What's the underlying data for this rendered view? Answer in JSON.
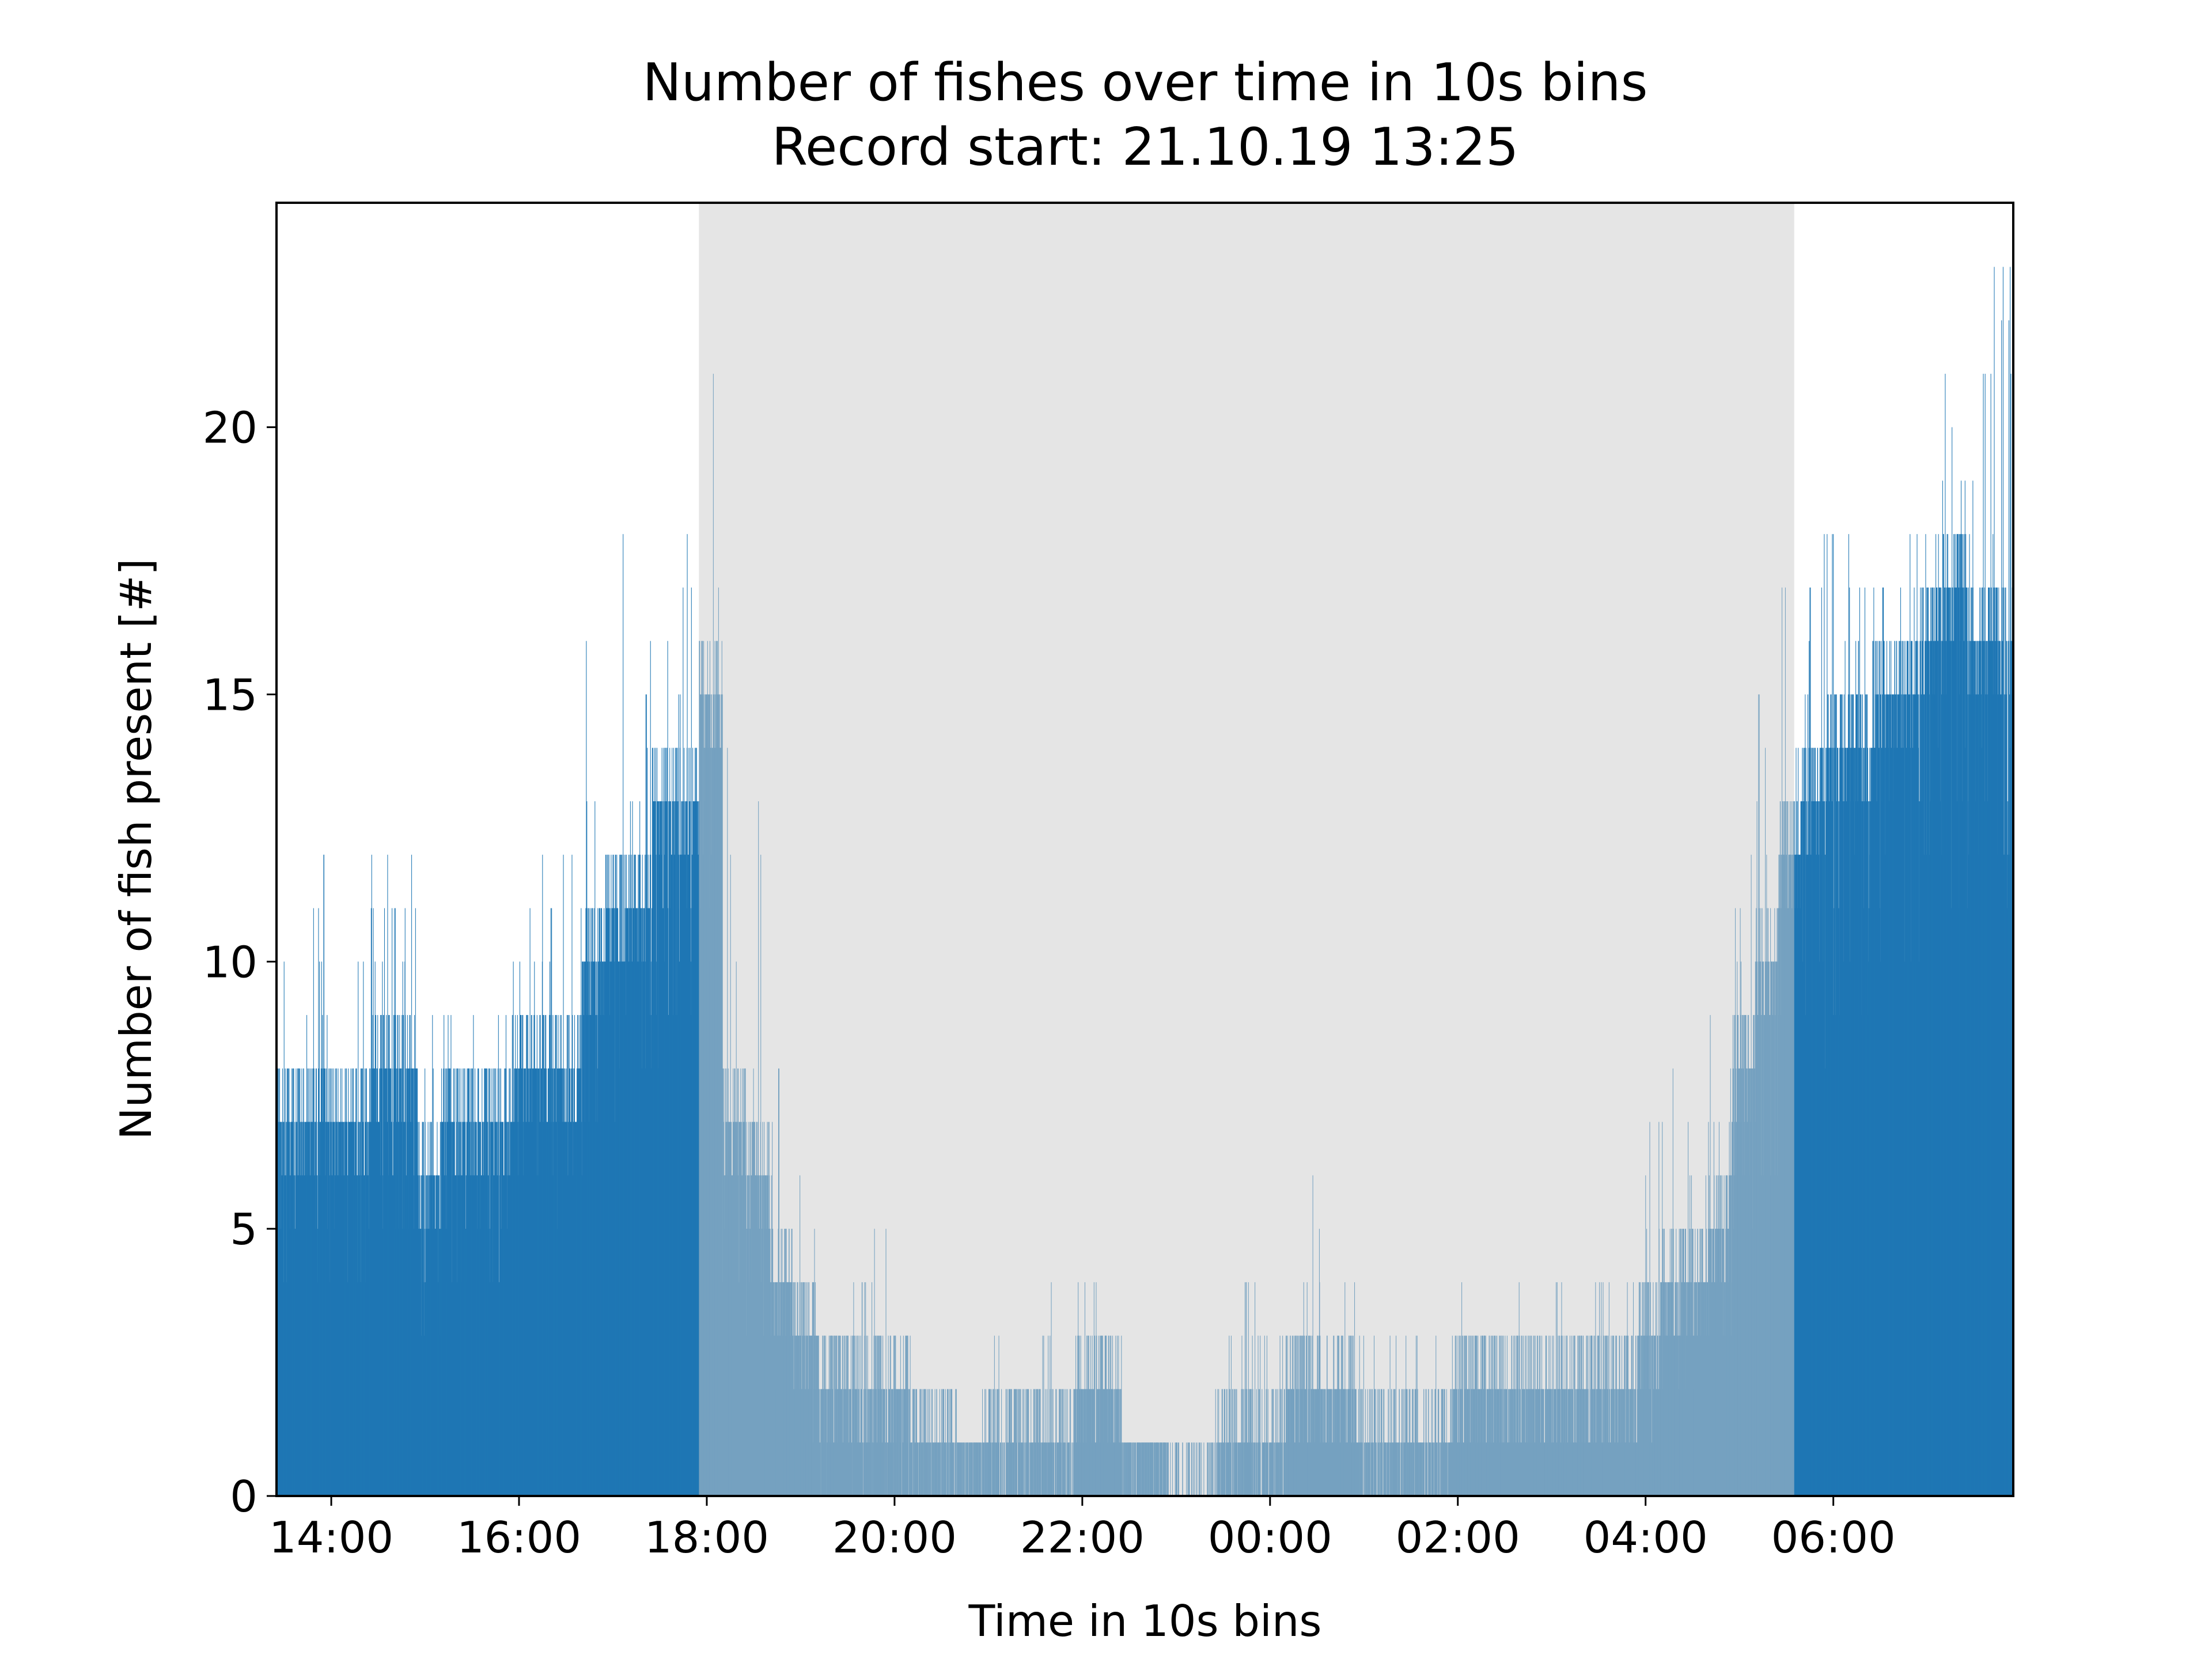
{
  "chart_data": {
    "type": "bar",
    "title": "Number of fishes over time in 10s bins",
    "subtitle": "Record start: 21.10.19 13:25",
    "xlabel": "Time in 10s bins",
    "ylabel": "Number of fish present [#]",
    "x_unit": "time of day (HH:MM), 10 s bins",
    "xlim": [
      "21.10.19 13:25",
      "22.10.19 07:55"
    ],
    "ylim": [
      0,
      24.2
    ],
    "xticks": [
      "14:00",
      "16:00",
      "18:00",
      "20:00",
      "22:00",
      "00:00",
      "02:00",
      "04:00",
      "06:00"
    ],
    "yticks": [
      0,
      5,
      10,
      15,
      20
    ],
    "grid": false,
    "bar_color": "#1f77b4",
    "night_shade": {
      "start": "17:55",
      "end": "05:35",
      "color": "#cccccc",
      "opacity": 0.5
    },
    "bins_per_segment": 90,
    "series": [
      {
        "segment_interval_minutes": 15,
        "x": [
          "13:25",
          "13:40",
          "13:55",
          "14:10",
          "14:25",
          "14:40",
          "14:55",
          "15:10",
          "15:25",
          "15:40",
          "15:55",
          "16:10",
          "16:25",
          "16:40",
          "16:55",
          "17:10",
          "17:25",
          "17:40",
          "17:55",
          "18:10",
          "18:25",
          "18:40",
          "18:55",
          "19:10",
          "19:25",
          "19:40",
          "19:55",
          "20:10",
          "20:25",
          "20:40",
          "20:55",
          "21:10",
          "21:25",
          "21:40",
          "21:55",
          "22:10",
          "22:25",
          "22:40",
          "22:55",
          "23:10",
          "23:25",
          "23:40",
          "23:55",
          "00:10",
          "00:25",
          "00:40",
          "00:55",
          "01:10",
          "01:25",
          "01:40",
          "01:55",
          "02:10",
          "02:25",
          "02:40",
          "02:55",
          "03:10",
          "03:25",
          "03:40",
          "03:55",
          "04:10",
          "04:25",
          "04:40",
          "04:55",
          "05:10",
          "05:25",
          "05:40",
          "05:55",
          "06:10",
          "06:25",
          "06:40",
          "06:55",
          "07:10",
          "07:25",
          "07:40"
        ],
        "max": [
          10,
          11,
          12,
          10,
          12,
          12,
          9,
          9,
          9,
          9,
          11,
          12,
          12,
          16,
          18,
          16,
          16,
          18,
          21,
          14,
          13,
          8,
          6,
          3,
          4,
          5,
          3,
          2,
          2,
          1,
          3,
          2,
          3,
          4,
          4,
          3,
          1,
          1,
          1,
          1,
          3,
          4,
          3,
          4,
          6,
          4,
          3,
          3,
          3,
          3,
          4,
          3,
          4,
          3,
          4,
          3,
          4,
          4,
          7,
          8,
          7,
          9,
          12,
          15,
          17,
          18,
          18,
          17,
          17,
          18,
          19,
          21,
          21,
          23
        ],
        "typical": [
          7,
          7,
          7,
          7,
          8,
          8,
          6,
          7,
          7,
          7,
          8,
          8,
          8,
          10,
          11,
          11,
          13,
          13,
          15,
          7,
          6,
          4,
          3,
          2,
          2,
          2,
          2,
          1,
          1,
          1,
          1,
          1,
          1,
          1,
          2,
          2,
          1,
          1,
          0,
          0,
          1,
          1,
          1,
          2,
          2,
          2,
          1,
          1,
          1,
          1,
          2,
          2,
          2,
          2,
          2,
          2,
          2,
          2,
          3,
          4,
          4,
          5,
          8,
          10,
          12,
          13,
          14,
          14,
          15,
          15,
          16,
          17,
          16,
          16
        ],
        "min": [
          4,
          4,
          4,
          4,
          5,
          5,
          3,
          4,
          4,
          4,
          4,
          5,
          5,
          6,
          7,
          7,
          8,
          9,
          10,
          4,
          3,
          2,
          1,
          0,
          0,
          0,
          0,
          0,
          0,
          0,
          0,
          0,
          0,
          0,
          1,
          1,
          0,
          0,
          0,
          0,
          0,
          0,
          0,
          1,
          1,
          1,
          0,
          0,
          0,
          0,
          1,
          1,
          1,
          1,
          1,
          1,
          1,
          1,
          1,
          2,
          2,
          3,
          5,
          6,
          8,
          8,
          9,
          9,
          10,
          10,
          11,
          11,
          11,
          11
        ]
      }
    ]
  }
}
